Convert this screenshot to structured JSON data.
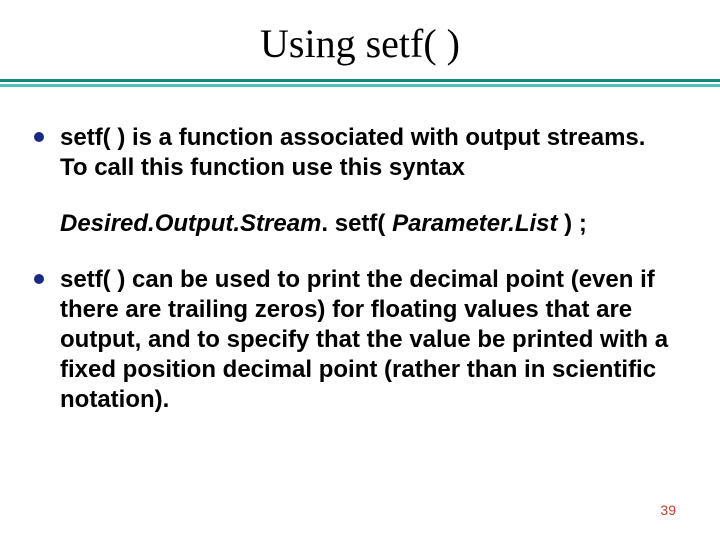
{
  "slide": {
    "background_color": "#ffffff",
    "title": {
      "text": "Using setf( )",
      "fontsize": 40,
      "color": "#000000"
    },
    "rule": {
      "top_color": "#0f8a78",
      "bottom_color": "#4fc4b4"
    },
    "bullet_color": "#1a2a80",
    "body_fontsize": 24,
    "body_color": "#000000",
    "bullets": [
      {
        "text": "setf( ) is a function associated with output streams.  To call this function use this syntax"
      },
      {
        "text": "setf( ) can be used to print the decimal point (even if there are trailing zeros) for floating values that are output, and to specify that the value be printed with a fixed position decimal point (rather than in scientific notation)."
      }
    ],
    "syntax": {
      "part1_italic": "Desired.Output.Stream",
      "part2": ". setf( ",
      "part3_italic": "Parameter.List",
      "part4": " ) ;",
      "color": "#000000"
    },
    "page_number": {
      "text": "39",
      "color": "#c04030",
      "fontsize": 14
    }
  }
}
